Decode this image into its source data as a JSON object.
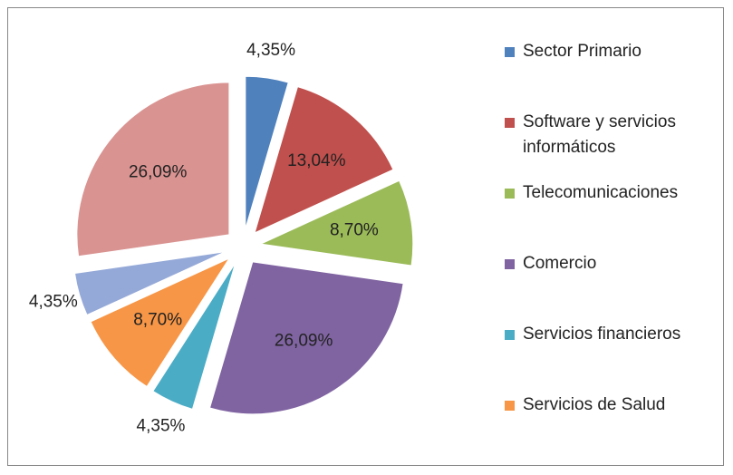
{
  "chart_data": {
    "type": "pie",
    "categories": [
      "Sector Primario",
      "Software y servicios informáticos",
      "Telecomunicaciones",
      "Comercio",
      "Servicios financieros",
      "Servicios de Salud",
      null,
      null
    ],
    "values": [
      4.35,
      13.04,
      8.7,
      26.09,
      4.35,
      8.7,
      4.35,
      26.09
    ],
    "value_labels": [
      "4,35%",
      "13,04%",
      "8,70%",
      "26,09%",
      "4,35%",
      "8,70%",
      "4,35%",
      "26,09%"
    ],
    "colors": [
      "#4f81bd",
      "#c0504d",
      "#9bbb59",
      "#8064a2",
      "#4bacc6",
      "#f79646",
      "#95a9d8",
      "#d99391"
    ],
    "legend": "right"
  }
}
